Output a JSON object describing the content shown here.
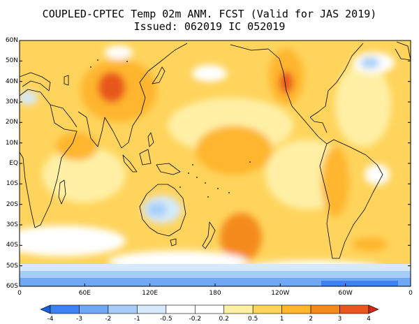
{
  "title": {
    "line1": "COUPLED-CPTEC Temp 02m ANM. FCST  (Valid for JAS 2019)",
    "line2": "Issued:  062019 IC 052019"
  },
  "axes": {
    "lat_labels": [
      "60N",
      "50N",
      "40N",
      "30N",
      "20N",
      "10N",
      "EQ",
      "10S",
      "20S",
      "30S",
      "40S",
      "50S",
      "60S"
    ],
    "lon_labels": [
      "0",
      "60E",
      "120E",
      "180",
      "120W",
      "60W",
      "0"
    ]
  },
  "colorbar": {
    "ticks": [
      "-4",
      "-3",
      "-2",
      "-1",
      "-0.5",
      "-0.2",
      "0.2",
      "0.5",
      "1",
      "2",
      "3",
      "4"
    ],
    "colors": [
      "#1a5fdc",
      "#3c82f0",
      "#6fa8f5",
      "#a6cdf8",
      "#d6eafb",
      "#ffffff",
      "#ffffff",
      "#fff0a6",
      "#ffd45c",
      "#ffb52e",
      "#f48a1c",
      "#e8571e",
      "#cf2818"
    ]
  },
  "map_colors": {
    "base": "#ffd45c",
    "light": "#fff0a6",
    "warm": "#ffb52e",
    "hot": "#f48a1c",
    "very_hot": "#e8571e",
    "pale_blue": "#d6eafb",
    "light_blue": "#a6cdf8",
    "mid_blue": "#6fa8f5",
    "white": "#ffffff"
  }
}
